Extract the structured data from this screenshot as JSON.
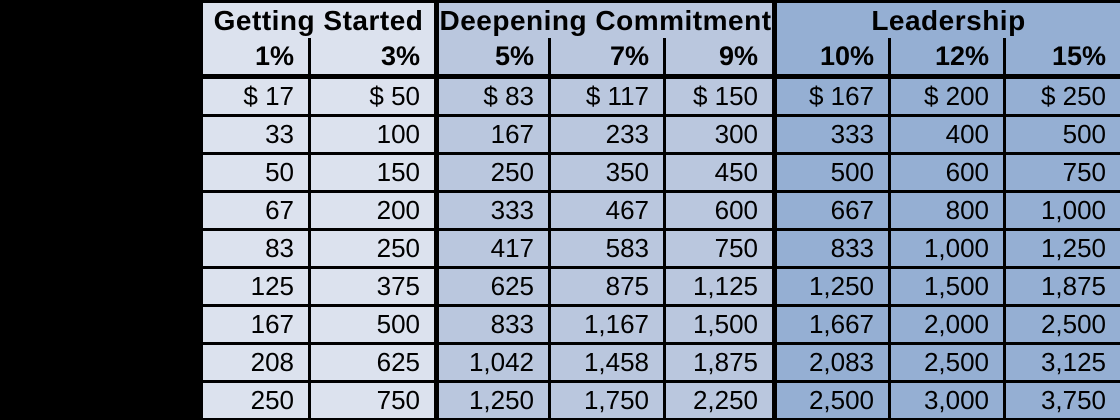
{
  "page": {
    "background_color": "#000000",
    "border_color": "#000000",
    "text_color": "#000000"
  },
  "table": {
    "groups": [
      {
        "label": "Getting Started",
        "columns": [
          "1%",
          "3%"
        ],
        "fill": "#dce2ee"
      },
      {
        "label": "Deepening Commitment",
        "columns": [
          "5%",
          "7%",
          "9%"
        ],
        "fill": "#bac7de"
      },
      {
        "label": "Leadership",
        "columns": [
          "10%",
          "12%",
          "15%"
        ],
        "fill": "#95afd3"
      }
    ],
    "rows": [
      [
        "$ 17",
        "$ 50",
        "$ 83",
        "$ 117",
        "$ 150",
        "$ 167",
        "$ 200",
        "$ 250"
      ],
      [
        "33",
        "100",
        "167",
        "233",
        "300",
        "333",
        "400",
        "500"
      ],
      [
        "50",
        "150",
        "250",
        "350",
        "450",
        "500",
        "600",
        "750"
      ],
      [
        "67",
        "200",
        "333",
        "467",
        "600",
        "667",
        "800",
        "1,000"
      ],
      [
        "83",
        "250",
        "417",
        "583",
        "750",
        "833",
        "1,000",
        "1,250"
      ],
      [
        "125",
        "375",
        "625",
        "875",
        "1,125",
        "1,250",
        "1,500",
        "1,875"
      ],
      [
        "167",
        "500",
        "833",
        "1,167",
        "1,500",
        "1,667",
        "2,000",
        "2,500"
      ],
      [
        "208",
        "625",
        "1,042",
        "1,458",
        "1,875",
        "2,083",
        "2,500",
        "3,125"
      ],
      [
        "250",
        "750",
        "1,250",
        "1,750",
        "2,250",
        "2,500",
        "3,000",
        "3,750"
      ]
    ]
  },
  "chart_data": {
    "type": "table",
    "column_groups": [
      {
        "label": "Getting Started",
        "span": 2
      },
      {
        "label": "Deepening Commitment",
        "span": 3
      },
      {
        "label": "Leadership",
        "span": 3
      }
    ],
    "columns": [
      "1%",
      "3%",
      "5%",
      "7%",
      "9%",
      "10%",
      "12%",
      "15%"
    ],
    "currency_symbol": "$",
    "rows": [
      [
        17,
        50,
        83,
        117,
        150,
        167,
        200,
        250
      ],
      [
        33,
        100,
        167,
        233,
        300,
        333,
        400,
        500
      ],
      [
        50,
        150,
        250,
        350,
        450,
        500,
        600,
        750
      ],
      [
        67,
        200,
        333,
        467,
        600,
        667,
        800,
        1000
      ],
      [
        83,
        250,
        417,
        583,
        750,
        833,
        1000,
        1250
      ],
      [
        125,
        375,
        625,
        875,
        1125,
        1250,
        1500,
        1875
      ],
      [
        167,
        500,
        833,
        1167,
        1500,
        1667,
        2000,
        2500
      ],
      [
        208,
        625,
        1042,
        1458,
        1875,
        2083,
        2500,
        3125
      ],
      [
        250,
        750,
        1250,
        1750,
        2250,
        2500,
        3000,
        3750
      ]
    ],
    "layout_hints": {
      "group_fills": [
        "#dce2ee",
        "#bac7de",
        "#95afd3"
      ],
      "gridlines": "black",
      "left_region": "solid black margin",
      "alignment": "right"
    }
  }
}
